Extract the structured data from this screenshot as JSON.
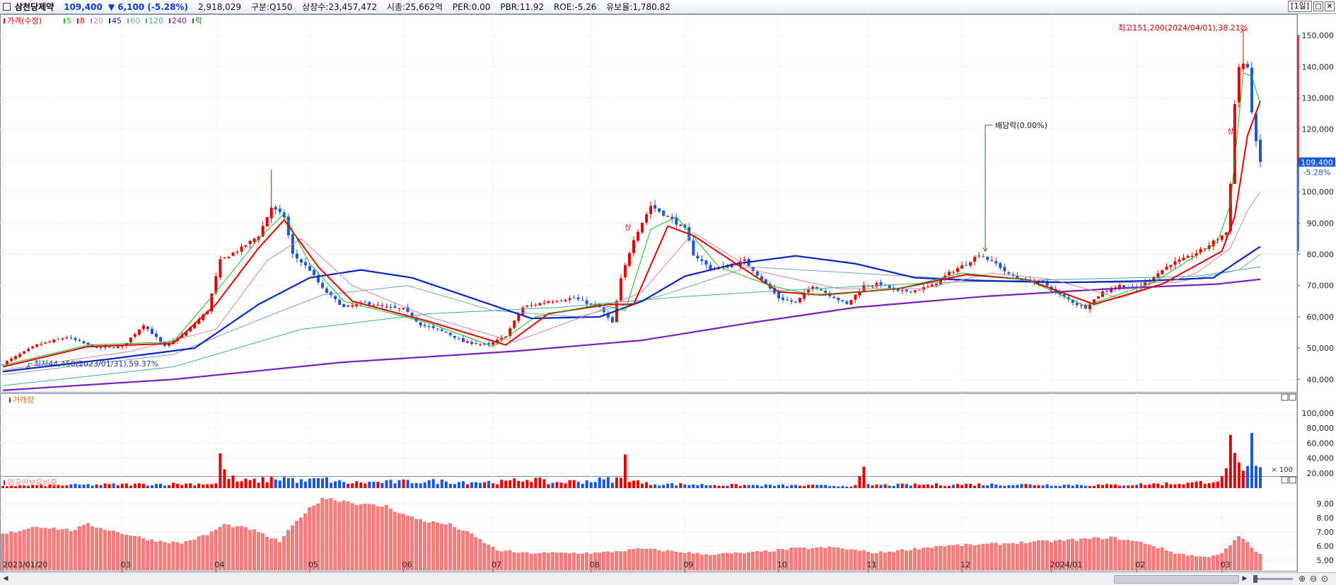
{
  "header": {
    "name": "삼천당제약",
    "price": "109,400",
    "change": "▼ 6,100 (-5.28%)",
    "volume": "2,918,029",
    "info": [
      "구분:Q150",
      "상장수:23,457,472",
      "시총:25,662억",
      "PER:0.00",
      "PBR:11.92",
      "ROE:-5.26",
      "유보율:1,780.82"
    ],
    "period": "[1일]"
  },
  "legend": {
    "price_label": "가격(수정)",
    "ma": [
      {
        "label": "5",
        "color": "#1cb41c"
      },
      {
        "label": "8",
        "color": "#e00000"
      },
      {
        "label": "20",
        "color": "#d97fa6"
      },
      {
        "label": "45",
        "color": "#0a24c8"
      },
      {
        "label": "60",
        "color": "#7f9fbf"
      },
      {
        "label": "120",
        "color": "#3fae8a"
      },
      {
        "label": "240",
        "color": "#7a1fb8"
      }
    ],
    "extra": "락"
  },
  "panels": {
    "volume_label": "거래량",
    "foreign_label": "외국인보유비중",
    "volume_unit": "× 100"
  },
  "colors": {
    "up": "#e00000",
    "down": "#1a56d6",
    "foreign": "#f08080"
  },
  "annotations": {
    "high": "최고151,200(2024/04/01),38.21%",
    "low": "최저44,450(2023/01/31),59.37%",
    "dividend": "배당락(0.00%)",
    "limit_up": "상",
    "current_price": "109,400",
    "current_change": "-5.28%"
  },
  "chart_data": {
    "type": "candlestick",
    "x_range": [
      "2023/01/20",
      "2024/04/05"
    ],
    "x_tick_labels": [
      "2023/01/20",
      "03",
      "04",
      "05",
      "06",
      "07",
      "08",
      "09",
      "10",
      "11",
      "12",
      "2024/01",
      "02",
      "03",
      "04"
    ],
    "price_ticks": [
      "150,000",
      "140,000",
      "130,000",
      "120,000",
      "110,000",
      "100,000",
      "90,000",
      "80,000",
      "70,000",
      "60,000",
      "50,000",
      "40,000"
    ],
    "price_ylim": [
      36000,
      155000
    ],
    "volume_ticks": [
      "100,000",
      "80,000",
      "60,000",
      "40,000",
      "20,000"
    ],
    "volume_ylim": [
      0,
      115000
    ],
    "foreign_ticks": [
      "9.00",
      "8.00",
      "7.00",
      "6.00",
      "5.00"
    ],
    "foreign_ylim": [
      4.3,
      10.3
    ],
    "close_keypoints": [
      [
        0,
        45000
      ],
      [
        8,
        51000
      ],
      [
        15,
        53500
      ],
      [
        22,
        50000
      ],
      [
        28,
        50500
      ],
      [
        33,
        57500
      ],
      [
        38,
        50500
      ],
      [
        43,
        55000
      ],
      [
        48,
        62000
      ],
      [
        51,
        78000
      ],
      [
        56,
        82000
      ],
      [
        60,
        86000
      ],
      [
        63,
        95000
      ],
      [
        66,
        92000
      ],
      [
        68,
        80000
      ],
      [
        72,
        75000
      ],
      [
        75,
        69000
      ],
      [
        80,
        63000
      ],
      [
        85,
        64500
      ],
      [
        90,
        63000
      ],
      [
        94,
        62500
      ],
      [
        98,
        57500
      ],
      [
        104,
        55000
      ],
      [
        108,
        52000
      ],
      [
        114,
        51000
      ],
      [
        118,
        54000
      ],
      [
        122,
        63000
      ],
      [
        128,
        65000
      ],
      [
        134,
        66000
      ],
      [
        140,
        63000
      ],
      [
        143,
        58000
      ],
      [
        145,
        72000
      ],
      [
        148,
        85000
      ],
      [
        152,
        95500
      ],
      [
        156,
        92000
      ],
      [
        160,
        88000
      ],
      [
        162,
        80000
      ],
      [
        166,
        75500
      ],
      [
        170,
        76000
      ],
      [
        174,
        78000
      ],
      [
        178,
        72000
      ],
      [
        182,
        66000
      ],
      [
        186,
        64500
      ],
      [
        190,
        70000
      ],
      [
        194,
        67000
      ],
      [
        198,
        64000
      ],
      [
        202,
        70000
      ],
      [
        206,
        70500
      ],
      [
        210,
        68000
      ],
      [
        214,
        68500
      ],
      [
        218,
        70000
      ],
      [
        222,
        74000
      ],
      [
        226,
        77000
      ],
      [
        229,
        80000
      ],
      [
        233,
        77000
      ],
      [
        236,
        73500
      ],
      [
        240,
        71500
      ],
      [
        244,
        71000
      ],
      [
        248,
        67000
      ],
      [
        252,
        64000
      ],
      [
        254,
        63000
      ],
      [
        258,
        68000
      ],
      [
        262,
        70000
      ],
      [
        266,
        69000
      ],
      [
        270,
        73000
      ],
      [
        274,
        77000
      ],
      [
        278,
        79000
      ],
      [
        282,
        82000
      ],
      [
        285,
        85000
      ],
      [
        287,
        87000
      ],
      [
        288,
        103000
      ],
      [
        289,
        128000
      ],
      [
        290,
        140000
      ],
      [
        291,
        141000
      ],
      [
        292,
        139000
      ],
      [
        293,
        126000
      ],
      [
        294,
        115500
      ],
      [
        295,
        109400
      ]
    ],
    "ma5": [
      [
        0,
        44500
      ],
      [
        20,
        51000
      ],
      [
        40,
        52000
      ],
      [
        50,
        68000
      ],
      [
        60,
        85000
      ],
      [
        66,
        93000
      ],
      [
        72,
        77000
      ],
      [
        80,
        65000
      ],
      [
        100,
        58000
      ],
      [
        115,
        50500
      ],
      [
        125,
        60000
      ],
      [
        140,
        64000
      ],
      [
        146,
        62000
      ],
      [
        152,
        88000
      ],
      [
        158,
        92000
      ],
      [
        168,
        76000
      ],
      [
        180,
        70000
      ],
      [
        190,
        67000
      ],
      [
        210,
        69000
      ],
      [
        225,
        74000
      ],
      [
        240,
        72000
      ],
      [
        254,
        63500
      ],
      [
        270,
        71000
      ],
      [
        285,
        84000
      ],
      [
        288,
        96000
      ],
      [
        291,
        138000
      ],
      [
        293,
        137000
      ],
      [
        295,
        128000
      ]
    ],
    "ma8": [
      [
        0,
        44000
      ],
      [
        20,
        50500
      ],
      [
        40,
        51500
      ],
      [
        50,
        64000
      ],
      [
        60,
        82000
      ],
      [
        66,
        91000
      ],
      [
        74,
        76000
      ],
      [
        82,
        65000
      ],
      [
        100,
        58500
      ],
      [
        118,
        51000
      ],
      [
        128,
        61000
      ],
      [
        142,
        64000
      ],
      [
        148,
        64000
      ],
      [
        156,
        89000
      ],
      [
        162,
        86000
      ],
      [
        172,
        77000
      ],
      [
        182,
        68000
      ],
      [
        192,
        67000
      ],
      [
        210,
        69000
      ],
      [
        226,
        73500
      ],
      [
        240,
        72000
      ],
      [
        256,
        64000
      ],
      [
        272,
        70500
      ],
      [
        286,
        81000
      ],
      [
        289,
        92000
      ],
      [
        292,
        118000
      ],
      [
        295,
        129000
      ]
    ],
    "ma20": [
      [
        0,
        43000
      ],
      [
        30,
        49000
      ],
      [
        50,
        56000
      ],
      [
        62,
        78000
      ],
      [
        70,
        85000
      ],
      [
        82,
        70000
      ],
      [
        100,
        60000
      ],
      [
        120,
        52000
      ],
      [
        140,
        62000
      ],
      [
        150,
        68000
      ],
      [
        162,
        87000
      ],
      [
        176,
        75000
      ],
      [
        196,
        69000
      ],
      [
        216,
        69000
      ],
      [
        232,
        74000
      ],
      [
        246,
        72000
      ],
      [
        262,
        66000
      ],
      [
        280,
        74000
      ],
      [
        288,
        82000
      ],
      [
        292,
        94000
      ],
      [
        295,
        100000
      ]
    ],
    "ma45": [
      [
        0,
        42500
      ],
      [
        25,
        46500
      ],
      [
        45,
        50000
      ],
      [
        60,
        64000
      ],
      [
        72,
        72500
      ],
      [
        84,
        75000
      ],
      [
        96,
        72500
      ],
      [
        110,
        66000
      ],
      [
        124,
        59500
      ],
      [
        140,
        60000
      ],
      [
        150,
        65000
      ],
      [
        160,
        73000
      ],
      [
        172,
        77000
      ],
      [
        186,
        79500
      ],
      [
        200,
        77000
      ],
      [
        214,
        72500
      ],
      [
        230,
        71500
      ],
      [
        250,
        71000
      ],
      [
        268,
        71500
      ],
      [
        284,
        72500
      ],
      [
        290,
        78000
      ],
      [
        295,
        82500
      ]
    ],
    "ma60": [
      [
        0,
        41500
      ],
      [
        40,
        48000
      ],
      [
        60,
        59000
      ],
      [
        75,
        67000
      ],
      [
        95,
        70000
      ],
      [
        115,
        62000
      ],
      [
        135,
        60000
      ],
      [
        155,
        67000
      ],
      [
        175,
        76000
      ],
      [
        200,
        74000
      ],
      [
        225,
        72000
      ],
      [
        250,
        71000
      ],
      [
        275,
        71000
      ],
      [
        290,
        75000
      ],
      [
        295,
        80000
      ]
    ],
    "ma120": [
      [
        0,
        38000
      ],
      [
        40,
        44000
      ],
      [
        70,
        56000
      ],
      [
        100,
        61000
      ],
      [
        130,
        63000
      ],
      [
        160,
        66500
      ],
      [
        190,
        69000
      ],
      [
        220,
        71000
      ],
      [
        250,
        72000
      ],
      [
        280,
        73000
      ],
      [
        295,
        76000
      ]
    ],
    "ma240": [
      [
        0,
        36500
      ],
      [
        40,
        40000
      ],
      [
        80,
        45500
      ],
      [
        120,
        49000
      ],
      [
        150,
        52500
      ],
      [
        175,
        58000
      ],
      [
        200,
        63000
      ],
      [
        230,
        66500
      ],
      [
        260,
        69000
      ],
      [
        285,
        70500
      ],
      [
        295,
        72000
      ]
    ],
    "volume_keypoints": [
      [
        0,
        3000
      ],
      [
        30,
        5000
      ],
      [
        50,
        6000
      ],
      [
        51,
        46000
      ],
      [
        52,
        20000
      ],
      [
        55,
        9000
      ],
      [
        60,
        10000
      ],
      [
        66,
        14000
      ],
      [
        70,
        9000
      ],
      [
        75,
        12000
      ],
      [
        80,
        7000
      ],
      [
        100,
        9000
      ],
      [
        118,
        8000
      ],
      [
        124,
        13000
      ],
      [
        128,
        7000
      ],
      [
        145,
        12000
      ],
      [
        146,
        38000
      ],
      [
        147,
        14000
      ],
      [
        150,
        6000
      ],
      [
        170,
        4000
      ],
      [
        200,
        3000
      ],
      [
        202,
        22000
      ],
      [
        203,
        4000
      ],
      [
        230,
        5000
      ],
      [
        260,
        4000
      ],
      [
        280,
        7000
      ],
      [
        286,
        12000
      ],
      [
        287,
        22000
      ],
      [
        288,
        100000
      ],
      [
        289,
        36000
      ],
      [
        290,
        25000
      ],
      [
        291,
        17000
      ],
      [
        292,
        23000
      ],
      [
        293,
        64000
      ],
      [
        294,
        26000
      ],
      [
        295,
        25000
      ]
    ],
    "foreign_keypoints": [
      [
        0,
        6.8
      ],
      [
        8,
        7.4
      ],
      [
        16,
        7.1
      ],
      [
        20,
        7.5
      ],
      [
        28,
        6.9
      ],
      [
        35,
        6.4
      ],
      [
        42,
        6.2
      ],
      [
        48,
        6.8
      ],
      [
        52,
        7.5
      ],
      [
        58,
        7.2
      ],
      [
        65,
        6.3
      ],
      [
        70,
        8.1
      ],
      [
        75,
        9.4
      ],
      [
        80,
        9.2
      ],
      [
        85,
        8.9
      ],
      [
        90,
        8.8
      ],
      [
        95,
        8.1
      ],
      [
        100,
        7.7
      ],
      [
        105,
        7.5
      ],
      [
        110,
        6.8
      ],
      [
        116,
        5.7
      ],
      [
        122,
        5.5
      ],
      [
        130,
        5.5
      ],
      [
        140,
        5.5
      ],
      [
        150,
        5.8
      ],
      [
        158,
        5.6
      ],
      [
        165,
        5.4
      ],
      [
        175,
        5.5
      ],
      [
        185,
        5.8
      ],
      [
        195,
        5.9
      ],
      [
        205,
        5.5
      ],
      [
        220,
        6.0
      ],
      [
        230,
        6.1
      ],
      [
        250,
        6.4
      ],
      [
        260,
        6.6
      ],
      [
        268,
        6.2
      ],
      [
        275,
        5.5
      ],
      [
        282,
        5.2
      ],
      [
        286,
        5.5
      ],
      [
        288,
        6.0
      ],
      [
        290,
        6.7
      ],
      [
        292,
        6.2
      ],
      [
        294,
        5.6
      ],
      [
        295,
        5.4
      ]
    ],
    "month_starts": [
      0,
      28,
      50,
      72,
      94,
      115,
      138,
      160,
      182,
      203,
      225,
      246,
      266,
      286
    ]
  }
}
